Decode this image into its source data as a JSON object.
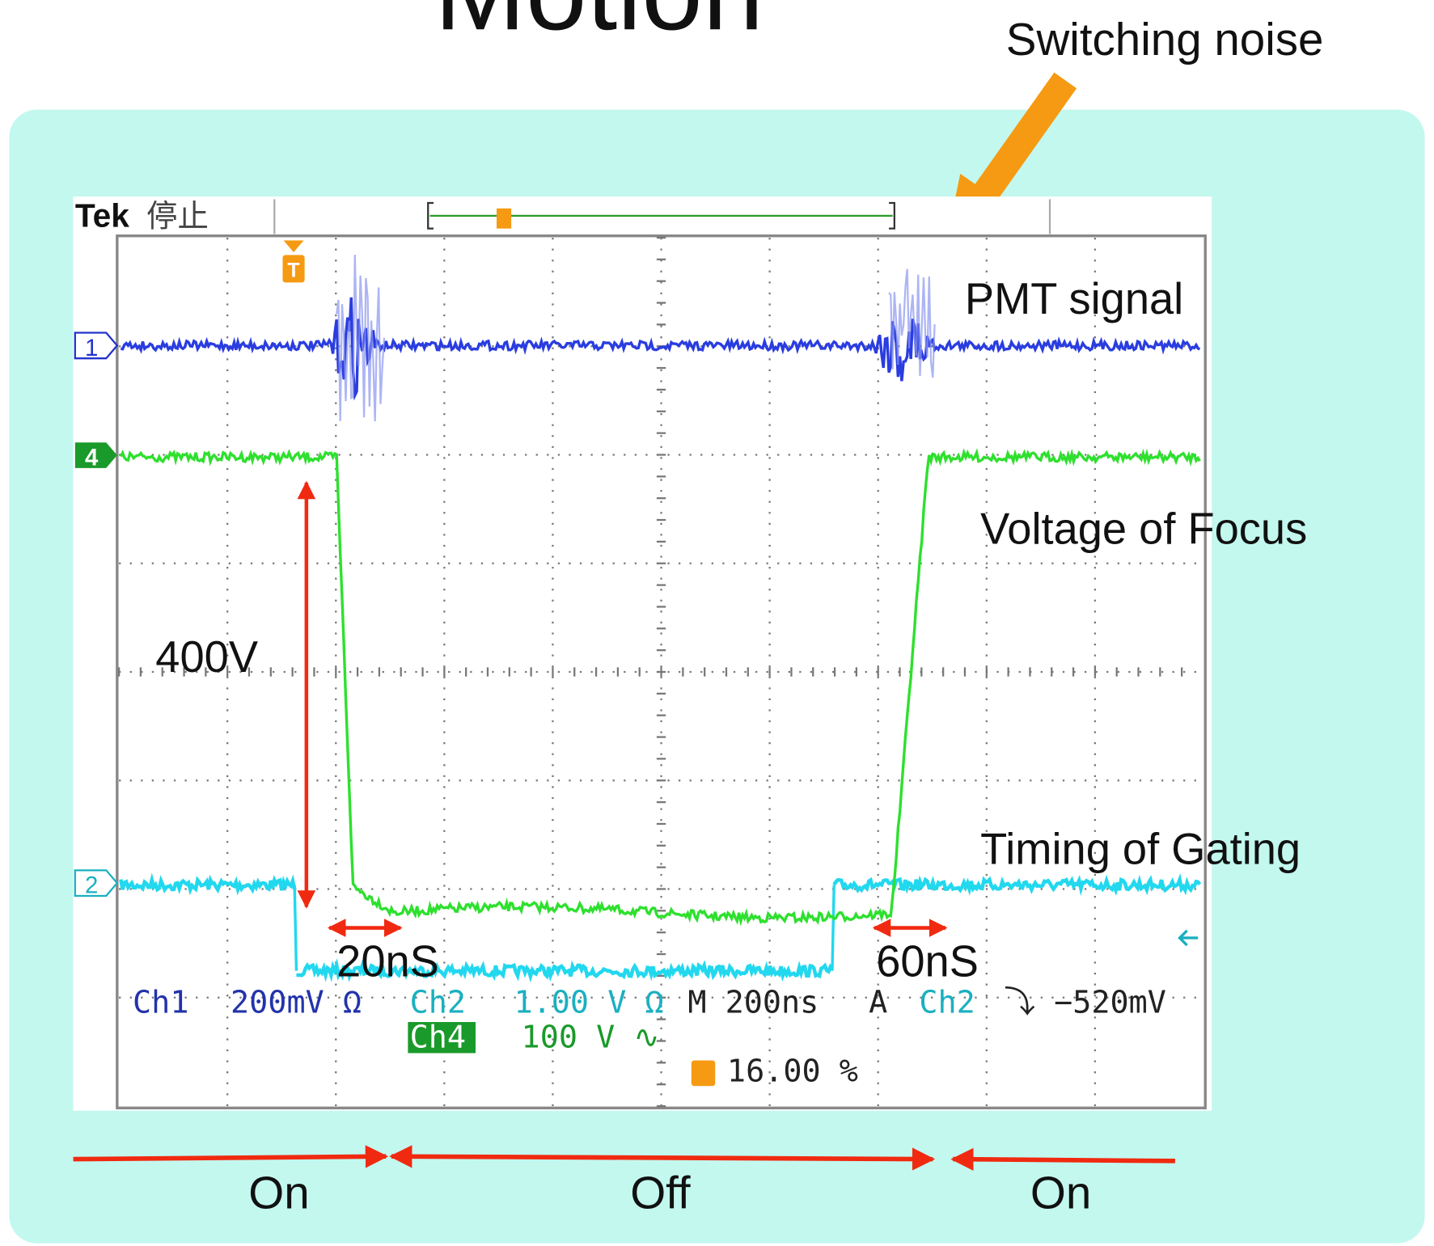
{
  "slide": {
    "title": "Motion",
    "callout": "Switching noise",
    "trace_labels": [
      "PMT signal",
      "Voltage of Focus",
      "Timing of Gating"
    ],
    "amplitude": "400V",
    "fall_time": "20nS",
    "rise_time": "60nS",
    "phases": [
      "On",
      "Off",
      "On"
    ]
  },
  "scope": {
    "brand": "Tek",
    "status": "停止",
    "channel_markers": [
      "1",
      "4",
      "2"
    ],
    "trigger_marker": "T",
    "readout": {
      "ch1": "Ch1",
      "ch1_scale": "200mV Ω",
      "ch2": "Ch2",
      "ch2_scale": "1.00 V Ω",
      "timebase": "M 200ns",
      "trigger_mode": "A",
      "trigger_source": "Ch2",
      "trigger_level": "⤵ −520mV",
      "ch4": "Ch4",
      "ch4_scale": "100 V ∿",
      "trigger_position": "16.00 %"
    }
  }
}
